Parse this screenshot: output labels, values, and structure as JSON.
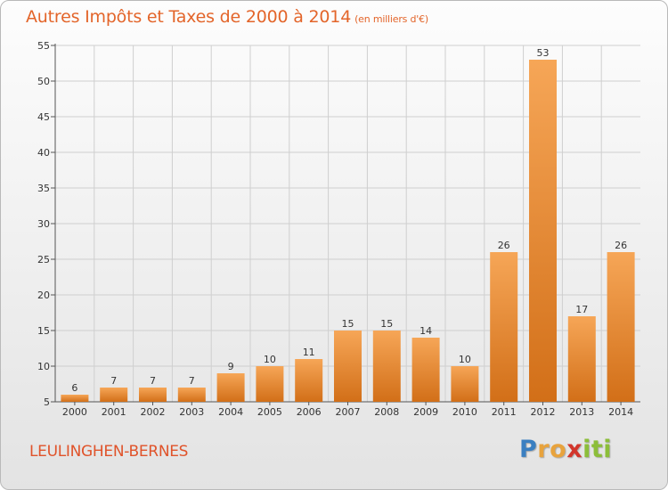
{
  "header": {
    "title": "Autres Impôts et Taxes de 2000 à 2014",
    "unit": "(en milliers d'€)"
  },
  "footer": {
    "commune": "LEULINGHEN-BERNES",
    "logo": {
      "letters": [
        "P",
        "r",
        "o",
        "x",
        "i",
        "t",
        "i"
      ],
      "colors": [
        "#3a7fc1",
        "#e8a33d",
        "#e8a33d",
        "#d2352b",
        "#8cbe3a",
        "#8cbe3a",
        "#8cbe3a"
      ]
    }
  },
  "colors": {
    "bar_light": "#f6a657",
    "bar_dark": "#d26f18",
    "grid": "#cfcfcf",
    "title": "#e3652a"
  },
  "chart_data": {
    "type": "bar",
    "title": "Autres Impôts et Taxes de 2000 à 2014",
    "subtitle": "(en milliers d'€)",
    "categories": [
      "2000",
      "2001",
      "2002",
      "2003",
      "2004",
      "2005",
      "2006",
      "2007",
      "2008",
      "2009",
      "2010",
      "2011",
      "2012",
      "2013",
      "2014"
    ],
    "values": [
      6,
      7,
      7,
      7,
      9,
      10,
      11,
      15,
      15,
      14,
      10,
      26,
      53,
      17,
      26
    ],
    "ylim": [
      5,
      55
    ],
    "yticks": [
      5,
      10,
      15,
      20,
      25,
      30,
      35,
      40,
      45,
      50,
      55
    ],
    "grid": true,
    "xlabel": "",
    "ylabel": ""
  }
}
